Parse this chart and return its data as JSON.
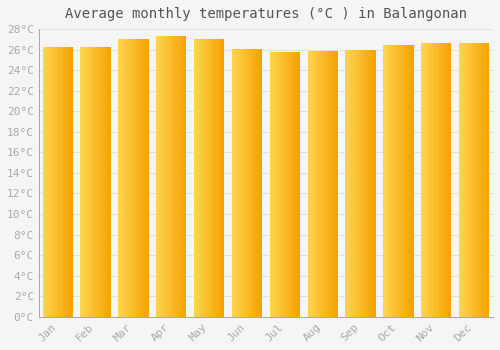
{
  "title": "Average monthly temperatures (°C ) in Balangonan",
  "months": [
    "Jan",
    "Feb",
    "Mar",
    "Apr",
    "May",
    "Jun",
    "Jul",
    "Aug",
    "Sep",
    "Oct",
    "Nov",
    "Dec"
  ],
  "values": [
    26.3,
    26.3,
    27.0,
    27.3,
    27.0,
    26.1,
    25.8,
    25.9,
    26.0,
    26.4,
    26.6,
    26.6
  ],
  "ylim": [
    0,
    28
  ],
  "yticks": [
    0,
    2,
    4,
    6,
    8,
    10,
    12,
    14,
    16,
    18,
    20,
    22,
    24,
    26,
    28
  ],
  "bar_color_left": "#FFD54F",
  "bar_color_right": "#F5A000",
  "background_color": "#F5F5F5",
  "grid_color": "#E0E0E0",
  "tick_label_color": "#AAAAAA",
  "title_color": "#555555",
  "title_fontsize": 10,
  "tick_fontsize": 8,
  "bar_width": 0.8
}
